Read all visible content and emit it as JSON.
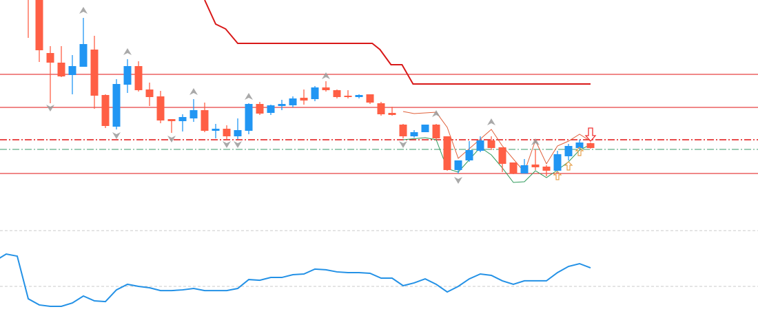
{
  "chart_data": {
    "type": "candlestick",
    "grid": false,
    "colors": {
      "bull": "#2196f3",
      "bear": "#ff5f45",
      "level": "#e01010",
      "mid_level": "#3a9a6a",
      "envelope_upper": "#e0603a",
      "envelope_lower": "#2e9a5a",
      "fractal": "#9a9a9a",
      "oscillator": "#2391e6",
      "osc_levels": "#c8c8c8",
      "buy_arrow": "#e6a04a",
      "sell_arrow": "#f03030"
    },
    "candles": [
      [
        1.152,
        1.153,
        1.1425,
        1.15
      ],
      [
        1.151,
        1.152,
        1.139,
        1.1407
      ],
      [
        1.1403,
        1.1413,
        1.133,
        1.1389
      ],
      [
        1.1389,
        1.1413,
        1.1368,
        1.1369
      ],
      [
        1.1371,
        1.14,
        1.1343,
        1.1384
      ],
      [
        1.1383,
        1.1454,
        1.1383,
        1.1416
      ],
      [
        1.1408,
        1.1428,
        1.1322,
        1.1341
      ],
      [
        1.1342,
        1.1343,
        1.1294,
        1.1297
      ],
      [
        1.1296,
        1.1365,
        1.1292,
        1.1358
      ],
      [
        1.1357,
        1.1394,
        1.1345,
        1.1384
      ],
      [
        1.1384,
        1.1391,
        1.1347,
        1.1349
      ],
      [
        1.135,
        1.136,
        1.1326,
        1.1339
      ],
      [
        1.134,
        1.1348,
        1.1301,
        1.1305
      ],
      [
        1.1307,
        1.1307,
        1.1287,
        1.1304
      ],
      [
        1.1304,
        1.1314,
        1.1289,
        1.131
      ],
      [
        1.1308,
        1.1336,
        1.1303,
        1.132
      ],
      [
        1.132,
        1.1331,
        1.1288,
        1.129
      ],
      [
        1.129,
        1.13,
        1.1279,
        1.1293
      ],
      [
        1.1293,
        1.1298,
        1.1277,
        1.1282
      ],
      [
        1.1282,
        1.1308,
        1.1278,
        1.1291
      ],
      [
        1.129,
        1.133,
        1.1285,
        1.1329
      ],
      [
        1.1329,
        1.1332,
        1.1313,
        1.1315
      ],
      [
        1.1316,
        1.1328,
        1.1313,
        1.1327
      ],
      [
        1.1326,
        1.1335,
        1.132,
        1.1329
      ],
      [
        1.1327,
        1.134,
        1.1324,
        1.1337
      ],
      [
        1.1338,
        1.135,
        1.1328,
        1.1334
      ],
      [
        1.1336,
        1.1355,
        1.1333,
        1.1353
      ],
      [
        1.1353,
        1.1362,
        1.1347,
        1.1349
      ],
      [
        1.1349,
        1.135,
        1.1337,
        1.1339
      ],
      [
        1.1341,
        1.1349,
        1.1337,
        1.1339
      ],
      [
        1.1339,
        1.1343,
        1.1337,
        1.1342
      ],
      [
        1.1343,
        1.1343,
        1.1329,
        1.1331
      ],
      [
        1.133,
        1.1332,
        1.1312,
        1.1314
      ],
      [
        1.1316,
        1.1325,
        1.1312,
        1.1313
      ],
      [
        1.1299,
        1.13,
        1.1279,
        1.1282
      ],
      [
        1.1282,
        1.1291,
        1.128,
        1.1288
      ],
      [
        1.1288,
        1.1299,
        1.1288,
        1.1299
      ],
      [
        1.1299,
        1.13,
        1.1277,
        1.1279
      ],
      [
        1.1282,
        1.1282,
        1.1232,
        1.1233
      ],
      [
        1.1233,
        1.1247,
        1.1228,
        1.1247
      ],
      [
        1.1247,
        1.1275,
        1.1245,
        1.1262
      ],
      [
        1.1261,
        1.1282,
        1.1259,
        1.1276
      ],
      [
        1.1276,
        1.1282,
        1.1262,
        1.1265
      ],
      [
        1.1266,
        1.1266,
        1.123,
        1.1242
      ],
      [
        1.1244,
        1.1244,
        1.1227,
        1.1228
      ],
      [
        1.1228,
        1.1249,
        1.1228,
        1.124
      ],
      [
        1.1241,
        1.1263,
        1.1233,
        1.1237
      ],
      [
        1.1238,
        1.124,
        1.1224,
        1.1232
      ],
      [
        1.1232,
        1.1261,
        1.1229,
        1.1256
      ],
      [
        1.1253,
        1.1271,
        1.1247,
        1.1268
      ],
      [
        1.1265,
        1.1277,
        1.1263,
        1.1273
      ],
      [
        1.1272,
        1.1273,
        1.1264,
        1.1265
      ]
    ],
    "candle_format": [
      "open",
      "high",
      "low",
      "close"
    ],
    "levels": [
      {
        "price": 1.1372,
        "style": "solid"
      },
      {
        "price": 1.1324,
        "style": "solid"
      },
      {
        "price": 1.1277,
        "style": "dash-dot"
      },
      {
        "price": 1.1263,
        "style": "dash-dot",
        "color_key": "mid_level"
      },
      {
        "price": 1.1228,
        "style": "solid"
      }
    ],
    "step_line": [
      [
        16,
        1.148
      ],
      [
        17,
        1.1445
      ],
      [
        17.9,
        1.1438
      ],
      [
        19,
        1.1417
      ],
      [
        31.2,
        1.1417
      ],
      [
        31.9,
        1.1408
      ],
      [
        32.9,
        1.1386
      ],
      [
        33.9,
        1.1386
      ],
      [
        34.9,
        1.1358
      ],
      [
        51,
        1.1358
      ]
    ],
    "envelope_upper": [
      [
        34,
        1.1318
      ],
      [
        35,
        1.1315
      ],
      [
        37,
        1.1317
      ],
      [
        38,
        1.1295
      ],
      [
        39,
        1.125
      ],
      [
        42,
        1.1292
      ],
      [
        43,
        1.1268
      ],
      [
        45,
        1.123
      ],
      [
        46,
        1.1276
      ],
      [
        47,
        1.1242
      ],
      [
        48,
        1.1268
      ],
      [
        49,
        1.1275
      ],
      [
        50,
        1.1285
      ],
      [
        51,
        1.1275
      ]
    ],
    "envelope_lower": [
      [
        34,
        1.1277
      ],
      [
        36,
        1.128
      ],
      [
        37,
        1.1277
      ],
      [
        38,
        1.1235
      ],
      [
        39,
        1.123
      ],
      [
        41,
        1.1266
      ],
      [
        42,
        1.1255
      ],
      [
        43,
        1.1236
      ],
      [
        44,
        1.1215
      ],
      [
        45,
        1.1216
      ],
      [
        46,
        1.1232
      ],
      [
        47,
        1.1222
      ],
      [
        48,
        1.1233
      ],
      [
        49,
        1.1245
      ],
      [
        50,
        1.1262
      ],
      [
        51,
        1.127
      ]
    ],
    "fractals_up": [
      [
        5,
        1.1465
      ],
      [
        9,
        1.1405
      ],
      [
        15,
        1.1347
      ],
      [
        20,
        1.134
      ],
      [
        27,
        1.137
      ],
      [
        37,
        1.1315
      ],
      [
        42,
        1.1303
      ],
      [
        46,
        1.1274
      ]
    ],
    "fractals_down": [
      [
        2,
        1.1323
      ],
      [
        8,
        1.1283
      ],
      [
        13,
        1.1278
      ],
      [
        18,
        1.127
      ],
      [
        19,
        1.127
      ],
      [
        34,
        1.127
      ],
      [
        39,
        1.1218
      ]
    ],
    "buy_signals": [
      [
        48,
        1.1225
      ],
      [
        49,
        1.1239
      ],
      [
        50,
        1.126
      ]
    ],
    "sell_signals": [
      [
        51,
        1.1288
      ]
    ],
    "oscillator": {
      "levels": [
        70,
        30
      ],
      "start_index": -2.6,
      "values": [
        50.3,
        53.2,
        51.7,
        21.1,
        16.7,
        15.7,
        15.7,
        18.1,
        23.1,
        19.6,
        19.1,
        27.5,
        31.5,
        30,
        29,
        27,
        27,
        27.5,
        28.5,
        27,
        27,
        27,
        28.5,
        34.9,
        34.4,
        36.4,
        36.4,
        38.4,
        38.9,
        42.4,
        41.9,
        40.4,
        39.9,
        39.9,
        39.4,
        35.9,
        35.9,
        30.5,
        32.5,
        35.4,
        31.5,
        26,
        30,
        35.4,
        38.9,
        37.9,
        34,
        31.5,
        34,
        34,
        34,
        39.9,
        44.3,
        46.3,
        43.3
      ]
    }
  }
}
